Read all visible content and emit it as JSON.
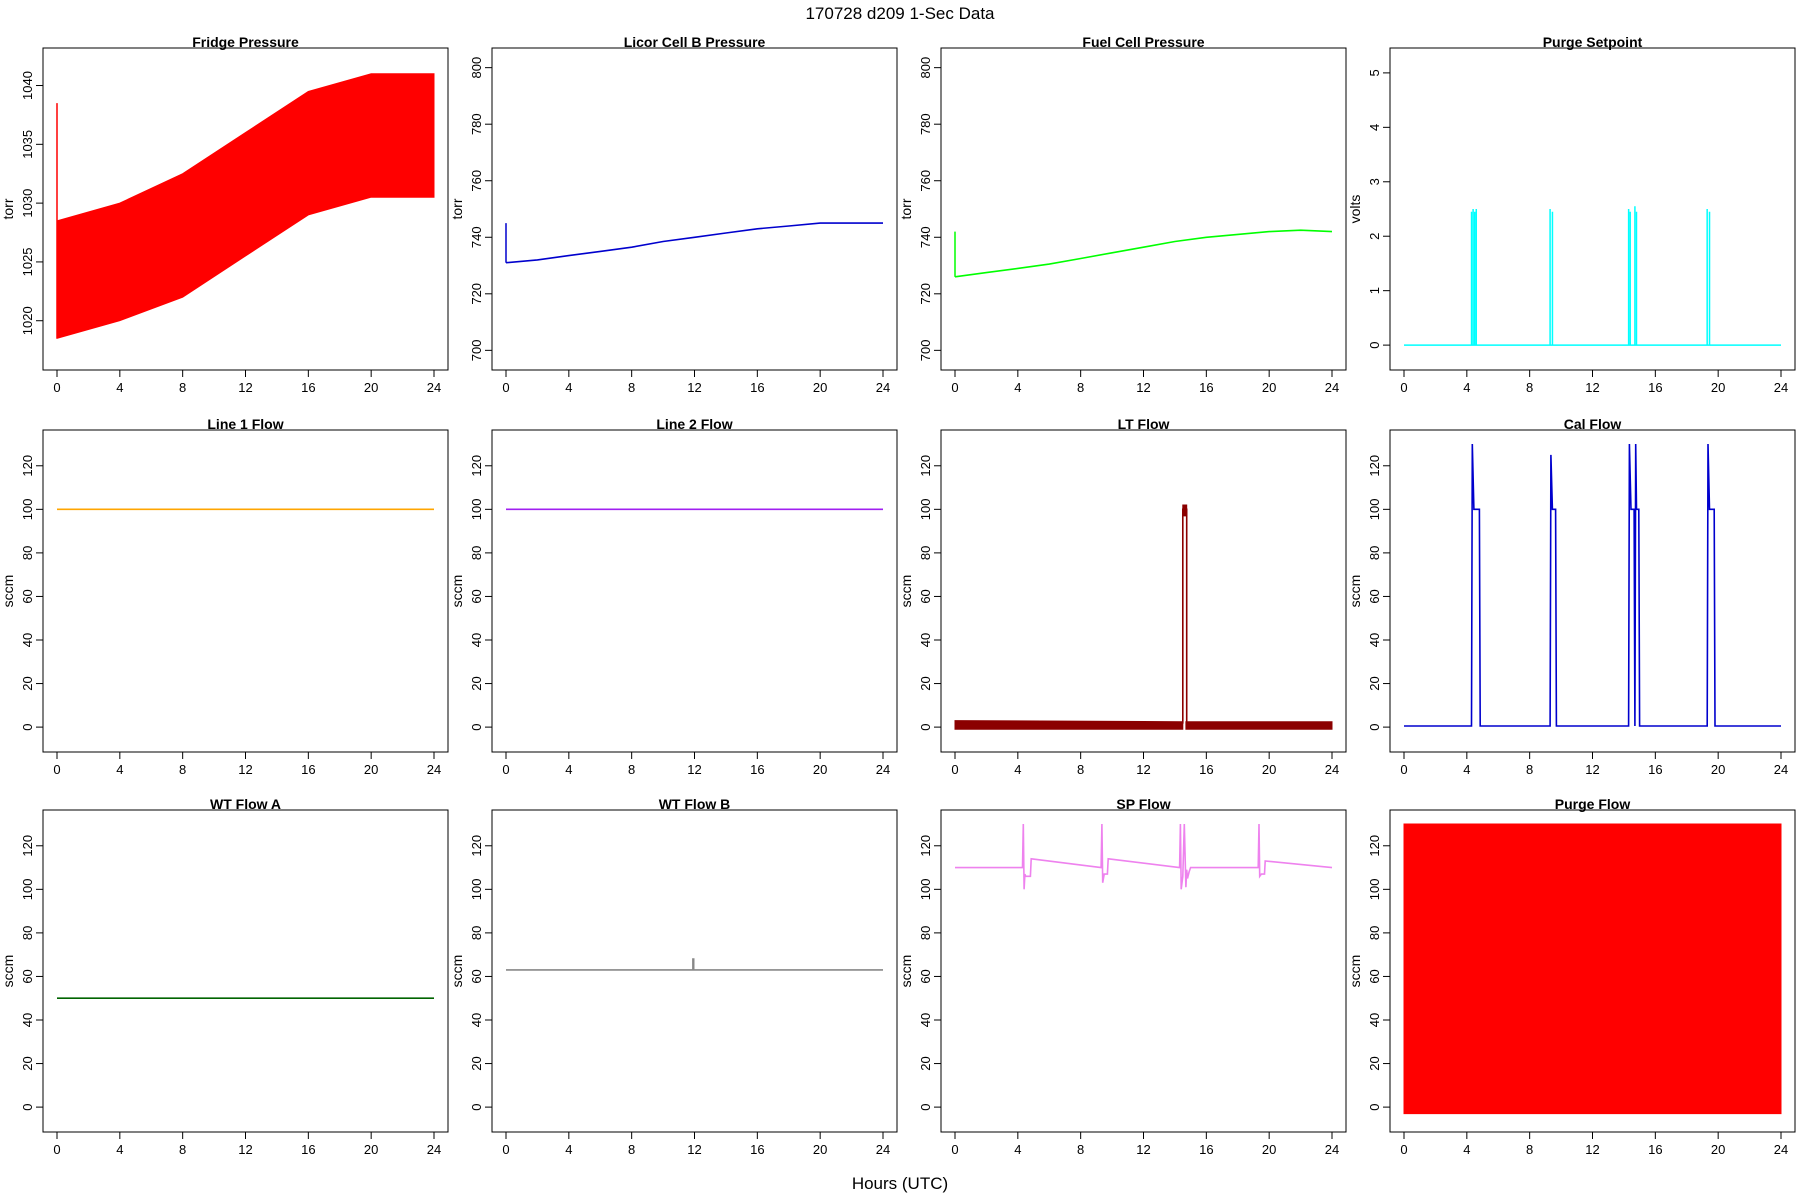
{
  "header": {
    "title": "170728    d209    1-Sec Data"
  },
  "footer": {
    "xlabel": "Hours (UTC)"
  },
  "chart_data": [
    {
      "title": "Fridge Pressure",
      "type": "line",
      "ylabel": "torr",
      "color": "#ff0000",
      "xlim": [
        0,
        24
      ],
      "ylim": [
        1017,
        1042
      ],
      "xticks": [
        0,
        4,
        8,
        12,
        16,
        20,
        24
      ],
      "yticks": [
        1020,
        1025,
        1030,
        1035,
        1040
      ],
      "series": [
        {
          "style": "band",
          "x": [
            0,
            4,
            8,
            12,
            16,
            20,
            24
          ],
          "low": [
            1018.5,
            1020,
            1022,
            1025.5,
            1029,
            1030.5,
            1030.5
          ],
          "high": [
            1028.5,
            1030,
            1032.5,
            1036,
            1039.5,
            1041,
            1041
          ]
        }
      ],
      "annotations": [
        {
          "x": 0,
          "y": 1038.5,
          "note": "startup spike"
        }
      ]
    },
    {
      "title": "Licor Cell B Pressure",
      "type": "line",
      "ylabel": "torr",
      "color": "#0000cd",
      "xlim": [
        0,
        24
      ],
      "ylim": [
        698,
        802
      ],
      "xticks": [
        0,
        4,
        8,
        12,
        16,
        20,
        24
      ],
      "yticks": [
        700,
        720,
        740,
        760,
        780,
        800
      ],
      "series": [
        {
          "x": [
            0,
            2,
            4,
            6,
            8,
            10,
            12,
            14,
            16,
            18,
            20,
            22,
            24
          ],
          "y": [
            731,
            732,
            733.5,
            735,
            736.5,
            738.5,
            740,
            741.5,
            743,
            744,
            745,
            745,
            745
          ]
        }
      ],
      "annotations": [
        {
          "x": 0,
          "y": 745,
          "note": "startup spike"
        }
      ]
    },
    {
      "title": "Fuel Cell Pressure",
      "type": "line",
      "ylabel": "torr",
      "color": "#00ff00",
      "xlim": [
        0,
        24
      ],
      "ylim": [
        698,
        802
      ],
      "xticks": [
        0,
        4,
        8,
        12,
        16,
        20,
        24
      ],
      "yticks": [
        700,
        720,
        740,
        760,
        780,
        800
      ],
      "series": [
        {
          "x": [
            0,
            2,
            4,
            6,
            8,
            10,
            12,
            14,
            16,
            18,
            20,
            22,
            24
          ],
          "y": [
            726,
            727.5,
            729,
            730.5,
            732.5,
            734.5,
            736.5,
            738.5,
            740,
            741,
            742,
            742.5,
            742
          ]
        }
      ],
      "annotations": [
        {
          "x": 0,
          "y": 742,
          "note": "startup spike"
        }
      ]
    },
    {
      "title": "Purge Setpoint",
      "type": "line",
      "ylabel": "volts",
      "color": "#00ffff",
      "xlim": [
        0,
        24
      ],
      "ylim": [
        -0.2,
        5.2
      ],
      "xticks": [
        0,
        4,
        8,
        12,
        16,
        20,
        24
      ],
      "yticks": [
        0,
        1,
        2,
        3,
        4,
        5
      ],
      "series": [
        {
          "base": 0,
          "spikes": [
            {
              "x": 4.3,
              "y": 2.45
            },
            {
              "x": 4.4,
              "y": 2.5
            },
            {
              "x": 4.5,
              "y": 2.45
            },
            {
              "x": 4.6,
              "y": 2.5
            },
            {
              "x": 9.3,
              "y": 2.5
            },
            {
              "x": 9.45,
              "y": 2.45
            },
            {
              "x": 14.3,
              "y": 2.5
            },
            {
              "x": 14.4,
              "y": 2.45
            },
            {
              "x": 14.7,
              "y": 2.55
            },
            {
              "x": 14.8,
              "y": 2.45
            },
            {
              "x": 19.3,
              "y": 2.5
            },
            {
              "x": 19.45,
              "y": 2.45
            }
          ]
        }
      ]
    },
    {
      "title": "Line 1 Flow",
      "type": "line",
      "ylabel": "sccm",
      "color": "#ffa500",
      "xlim": [
        0,
        24
      ],
      "ylim": [
        -5,
        130
      ],
      "xticks": [
        0,
        4,
        8,
        12,
        16,
        20,
        24
      ],
      "yticks": [
        0,
        20,
        40,
        60,
        80,
        100,
        120
      ],
      "series": [
        {
          "x": [
            0,
            24
          ],
          "y": [
            100,
            100
          ]
        }
      ]
    },
    {
      "title": "Line 2 Flow",
      "type": "line",
      "ylabel": "sccm",
      "color": "#a020f0",
      "xlim": [
        0,
        24
      ],
      "ylim": [
        -5,
        130
      ],
      "xticks": [
        0,
        4,
        8,
        12,
        16,
        20,
        24
      ],
      "yticks": [
        0,
        20,
        40,
        60,
        80,
        100,
        120
      ],
      "series": [
        {
          "x": [
            0,
            24
          ],
          "y": [
            100,
            100
          ]
        }
      ]
    },
    {
      "title": "LT Flow",
      "type": "line",
      "ylabel": "sccm",
      "color": "#8b0000",
      "xlim": [
        0,
        24
      ],
      "ylim": [
        -5,
        130
      ],
      "xticks": [
        0,
        4,
        8,
        12,
        16,
        20,
        24
      ],
      "yticks": [
        0,
        20,
        40,
        60,
        80,
        100,
        120
      ],
      "series": [
        {
          "style": "band",
          "x": [
            0,
            14.5
          ],
          "low": [
            -1,
            -1
          ],
          "high": [
            3,
            2.5
          ]
        },
        {
          "style": "band",
          "x": [
            14.7,
            24
          ],
          "low": [
            -1,
            -1
          ],
          "high": [
            2.5,
            2.5
          ]
        },
        {
          "x": [
            14.45,
            14.5,
            14.5,
            14.75,
            14.75,
            14.8
          ],
          "y": [
            2,
            2,
            100,
            100,
            2,
            2
          ]
        },
        {
          "style": "band",
          "x": [
            14.5,
            14.75
          ],
          "low": [
            97,
            97
          ],
          "high": [
            102,
            102
          ]
        }
      ]
    },
    {
      "title": "Cal Flow",
      "type": "line",
      "ylabel": "sccm",
      "color": "#0000cd",
      "xlim": [
        0,
        24
      ],
      "ylim": [
        -5,
        130
      ],
      "xticks": [
        0,
        4,
        8,
        12,
        16,
        20,
        24
      ],
      "yticks": [
        0,
        20,
        40,
        60,
        80,
        100,
        120
      ],
      "series": [
        {
          "x": [
            0,
            4.3,
            4.35,
            4.45,
            4.8,
            4.85,
            9.3,
            9.35,
            9.45,
            9.65,
            9.7,
            14.3,
            14.35,
            14.45,
            14.65,
            14.7,
            14.75,
            14.8,
            14.95,
            15.0,
            19.3,
            19.35,
            19.45,
            19.75,
            19.8,
            24
          ],
          "y": [
            0.5,
            0.5,
            130,
            100,
            100,
            0.5,
            0.5,
            125,
            100,
            100,
            0.5,
            0.5,
            130,
            100,
            100,
            0.5,
            130,
            100,
            100,
            0.5,
            0.5,
            130,
            100,
            100,
            0.5,
            0.5
          ]
        }
      ]
    },
    {
      "title": "WT Flow A",
      "type": "line",
      "ylabel": "sccm",
      "color": "#006400",
      "xlim": [
        0,
        24
      ],
      "ylim": [
        -5,
        130
      ],
      "xticks": [
        0,
        4,
        8,
        12,
        16,
        20,
        24
      ],
      "yticks": [
        0,
        20,
        40,
        60,
        80,
        100,
        120
      ],
      "series": [
        {
          "x": [
            0,
            24
          ],
          "y": [
            50,
            50
          ]
        }
      ]
    },
    {
      "title": "WT Flow B",
      "type": "line",
      "ylabel": "sccm",
      "color": "#888888",
      "xlim": [
        0,
        24
      ],
      "ylim": [
        -5,
        130
      ],
      "xticks": [
        0,
        4,
        8,
        12,
        16,
        20,
        24
      ],
      "yticks": [
        0,
        20,
        40,
        60,
        80,
        100,
        120
      ],
      "series": [
        {
          "x": [
            0,
            11.9,
            11.9,
            11.95,
            11.95,
            24
          ],
          "y": [
            63,
            63,
            68,
            68,
            63,
            63
          ]
        }
      ]
    },
    {
      "title": "SP Flow",
      "type": "line",
      "ylabel": "sccm",
      "color": "#ee82ee",
      "xlim": [
        0,
        24
      ],
      "ylim": [
        -5,
        130
      ],
      "xticks": [
        0,
        4,
        8,
        12,
        16,
        20,
        24
      ],
      "yticks": [
        0,
        20,
        40,
        60,
        80,
        100,
        120
      ],
      "series": [
        {
          "x": [
            0,
            4.3,
            4.35,
            4.4,
            4.45,
            4.5,
            4.6,
            4.8,
            4.85,
            9.3,
            9.35,
            9.4,
            9.5,
            9.7,
            9.75,
            14.3,
            14.35,
            14.4,
            14.5,
            14.6,
            14.7,
            14.75,
            14.8,
            14.9,
            15.0,
            19.3,
            19.35,
            19.4,
            19.5,
            19.7,
            19.75,
            24
          ],
          "y": [
            110,
            110,
            130,
            100,
            107,
            106,
            106,
            106,
            114,
            110,
            130,
            103,
            107,
            107,
            114,
            110,
            130,
            100,
            106,
            130,
            101,
            109,
            105,
            108,
            110,
            110,
            130,
            106,
            107,
            107,
            113,
            110
          ]
        }
      ]
    },
    {
      "title": "Purge Flow",
      "type": "line",
      "ylabel": "sccm",
      "color": "#ff0000",
      "xlim": [
        0,
        24
      ],
      "ylim": [
        -5,
        130
      ],
      "xticks": [
        0,
        4,
        8,
        12,
        16,
        20,
        24
      ],
      "yticks": [
        0,
        20,
        40,
        60,
        80,
        100,
        120
      ],
      "series": [
        {
          "style": "band",
          "x": [
            0,
            24
          ],
          "low": [
            -3,
            -3
          ],
          "high": [
            130,
            130
          ]
        }
      ]
    }
  ]
}
